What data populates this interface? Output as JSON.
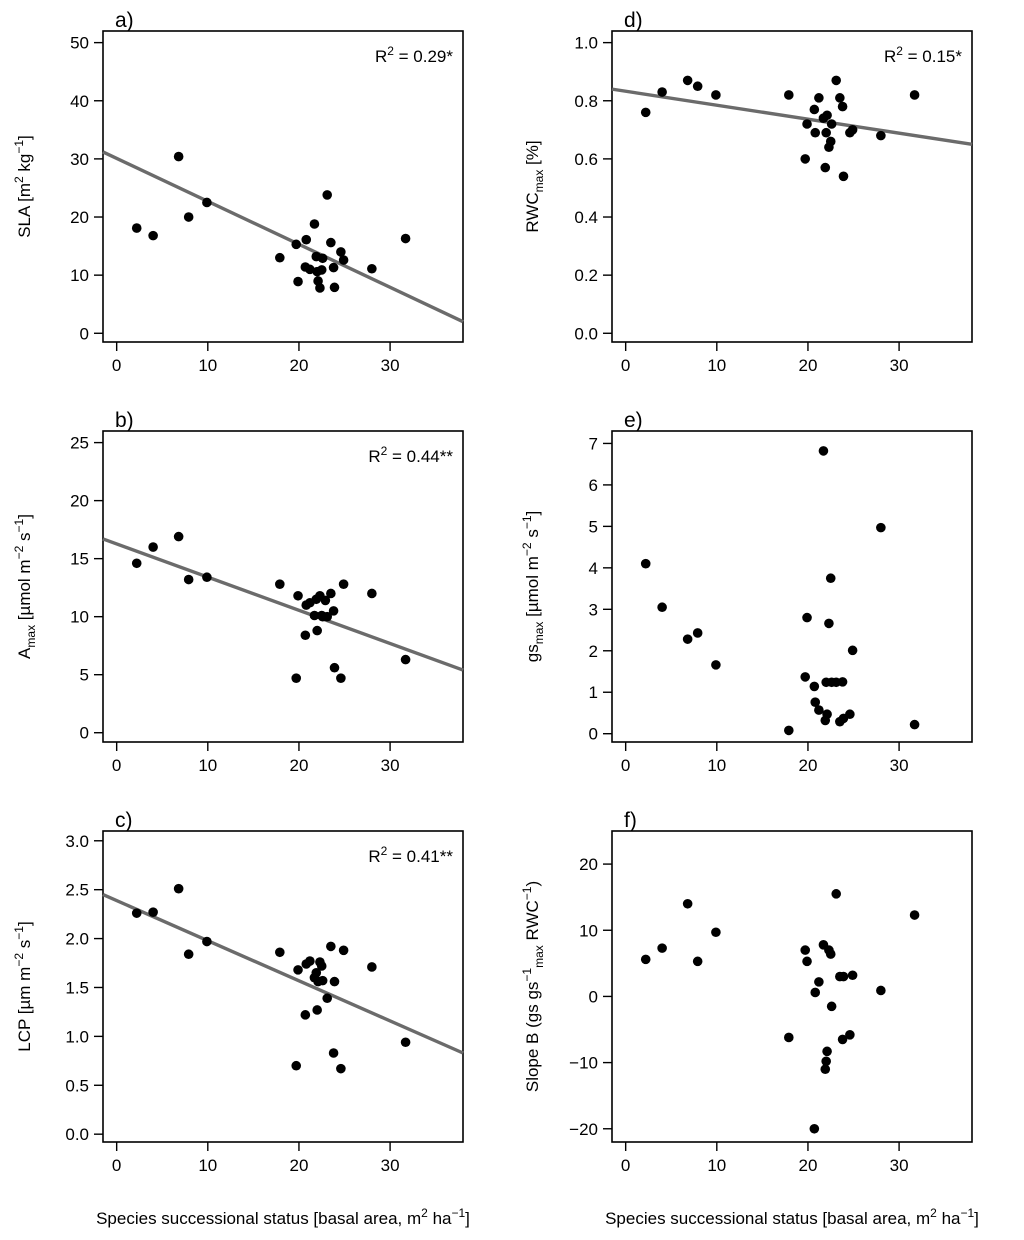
{
  "chart_data": [
    {
      "id": "a",
      "type": "scatter",
      "panel_label": "a)",
      "ylabel": "SLA [m² kg⁻¹]",
      "ylabel_parts": [
        "SLA [m",
        "2",
        " kg",
        "−1",
        "]"
      ],
      "xlim": [
        -1.5,
        38
      ],
      "ylim": [
        -1.5,
        52
      ],
      "xticks": [
        0,
        10,
        20,
        30
      ],
      "yticks": [
        0,
        10,
        20,
        30,
        40,
        50
      ],
      "annotation": "R² = 0.29*",
      "annotation_parts": [
        "R",
        "2",
        " = 0.29*"
      ],
      "fit_line": {
        "x": [
          -1.5,
          38
        ],
        "y": [
          31.2,
          2.0
        ]
      },
      "x": [
        2.2,
        4.0,
        6.8,
        7.9,
        9.9,
        17.9,
        19.7,
        19.9,
        20.7,
        20.8,
        21.2,
        21.7,
        21.9,
        22.0,
        22.1,
        22.3,
        22.5,
        22.6,
        23.1,
        23.5,
        23.8,
        23.9,
        24.6,
        24.9,
        28.0,
        31.7
      ],
      "y": [
        18.1,
        16.8,
        30.4,
        20.0,
        22.5,
        13.0,
        15.3,
        8.9,
        11.4,
        16.1,
        11.0,
        18.8,
        13.2,
        10.6,
        9.0,
        7.8,
        10.9,
        12.9,
        23.8,
        15.6,
        11.3,
        7.9,
        14.0,
        12.6,
        11.1,
        16.3
      ]
    },
    {
      "id": "b",
      "type": "scatter",
      "panel_label": "b)",
      "ylabel": "Aₘₐₓ [µmol m⁻² s⁻¹]",
      "ylabel_parts": [
        "A",
        "max",
        " [µmol m",
        "−2",
        " s",
        "−1",
        "]"
      ],
      "xlim": [
        -1.5,
        38
      ],
      "ylim": [
        -0.8,
        26
      ],
      "xticks": [
        0,
        10,
        20,
        30
      ],
      "yticks": [
        0,
        5,
        10,
        15,
        20,
        25
      ],
      "annotation": "R² = 0.44**",
      "annotation_parts": [
        "R",
        "2",
        " = 0.44**"
      ],
      "fit_line": {
        "x": [
          -1.5,
          38
        ],
        "y": [
          16.7,
          5.4
        ]
      },
      "x": [
        2.2,
        4.0,
        6.8,
        7.9,
        9.9,
        17.9,
        19.7,
        19.9,
        20.7,
        20.8,
        21.2,
        21.7,
        21.9,
        22.0,
        22.3,
        22.5,
        22.6,
        23.1,
        23.5,
        23.8,
        23.9,
        24.6,
        24.9,
        28.0,
        31.7,
        22.9
      ],
      "y": [
        14.6,
        16.0,
        16.9,
        13.2,
        13.4,
        12.8,
        4.7,
        11.8,
        8.4,
        11.0,
        11.2,
        10.1,
        11.5,
        8.8,
        11.8,
        10.1,
        10.0,
        10.0,
        12.0,
        10.5,
        5.6,
        4.7,
        12.8,
        12.0,
        6.3,
        11.4
      ]
    },
    {
      "id": "c",
      "type": "scatter",
      "panel_label": "c)",
      "ylabel": "LCP [µm m⁻² s⁻¹]",
      "ylabel_parts": [
        "LCP [µm m",
        "−2",
        " s",
        "−1",
        "]"
      ],
      "xlim": [
        -1.5,
        38
      ],
      "ylim": [
        -0.08,
        3.1
      ],
      "xticks": [
        0,
        10,
        20,
        30
      ],
      "yticks": [
        0.0,
        0.5,
        1.0,
        1.5,
        2.0,
        2.5,
        3.0
      ],
      "tick_decimals": 1,
      "annotation": "R² = 0.41**",
      "annotation_parts": [
        "R",
        "2",
        " = 0.41**"
      ],
      "fit_line": {
        "x": [
          -1.5,
          38
        ],
        "y": [
          2.45,
          0.83
        ]
      },
      "x": [
        2.2,
        4.0,
        6.8,
        7.9,
        9.9,
        17.9,
        19.7,
        19.9,
        20.7,
        20.8,
        21.2,
        21.7,
        21.9,
        22.0,
        22.1,
        22.3,
        22.5,
        22.6,
        23.1,
        23.5,
        23.8,
        23.9,
        24.6,
        24.9,
        28.0,
        31.7
      ],
      "y": [
        2.26,
        2.27,
        2.51,
        1.84,
        1.97,
        1.86,
        0.7,
        1.68,
        1.22,
        1.74,
        1.77,
        1.6,
        1.65,
        1.27,
        1.56,
        1.76,
        1.72,
        1.57,
        1.39,
        1.92,
        0.83,
        1.56,
        0.67,
        1.88,
        1.71,
        0.94
      ]
    },
    {
      "id": "d",
      "type": "scatter",
      "panel_label": "d)",
      "ylabel": "RWCₘₐₓ [%]",
      "ylabel_parts": [
        "RWC",
        "max",
        " [%]"
      ],
      "xlim": [
        -1.5,
        38
      ],
      "ylim": [
        -0.03,
        1.04
      ],
      "xticks": [
        0,
        10,
        20,
        30
      ],
      "yticks": [
        0.0,
        0.2,
        0.4,
        0.6,
        0.8,
        1.0
      ],
      "tick_decimals": 1,
      "annotation": "R² = 0.15*",
      "annotation_parts": [
        "R",
        "2",
        " = 0.15*"
      ],
      "fit_line": {
        "x": [
          -1.5,
          38
        ],
        "y": [
          0.84,
          0.65
        ]
      },
      "x": [
        2.2,
        4.0,
        6.8,
        7.9,
        9.9,
        17.9,
        19.7,
        19.9,
        20.7,
        20.8,
        21.2,
        21.7,
        21.9,
        22.0,
        22.1,
        22.3,
        22.5,
        22.6,
        23.1,
        23.5,
        23.8,
        23.9,
        24.6,
        24.9,
        28.0,
        31.7
      ],
      "y": [
        0.76,
        0.83,
        0.87,
        0.85,
        0.82,
        0.82,
        0.6,
        0.72,
        0.77,
        0.69,
        0.81,
        0.74,
        0.57,
        0.69,
        0.75,
        0.64,
        0.66,
        0.72,
        0.87,
        0.81,
        0.78,
        0.54,
        0.69,
        0.7,
        0.68,
        0.82
      ]
    },
    {
      "id": "e",
      "type": "scatter",
      "panel_label": "e)",
      "ylabel": "gsₘₐₓ [µmol m⁻² s⁻¹]",
      "ylabel_parts": [
        "gs",
        "max",
        " [µmol m",
        "−2",
        " s",
        "−1",
        "]"
      ],
      "xlim": [
        -1.5,
        38
      ],
      "ylim": [
        -0.2,
        7.3
      ],
      "xticks": [
        0,
        10,
        20,
        30
      ],
      "yticks": [
        0,
        1,
        2,
        3,
        4,
        5,
        6,
        7
      ],
      "annotation": "",
      "x": [
        2.2,
        4.0,
        6.8,
        7.9,
        9.9,
        17.9,
        19.7,
        19.9,
        20.7,
        20.8,
        21.2,
        21.7,
        21.9,
        22.0,
        22.1,
        22.3,
        22.5,
        22.6,
        23.1,
        23.5,
        23.8,
        23.9,
        24.6,
        24.9,
        28.0,
        31.7
      ],
      "y": [
        4.1,
        3.05,
        2.28,
        2.43,
        1.66,
        0.08,
        1.37,
        2.8,
        1.14,
        0.76,
        0.57,
        6.82,
        0.32,
        1.24,
        0.47,
        2.66,
        3.75,
        1.24,
        1.24,
        0.29,
        1.25,
        0.37,
        0.47,
        2.01,
        4.97,
        0.22
      ]
    },
    {
      "id": "f",
      "type": "scatter",
      "panel_label": "f)",
      "ylabel": "Slope B (gs gs⁻¹ₘₐₓ RWC⁻¹)",
      "ylabel_parts": [
        "Slope B (gs gs",
        "−1",
        "max",
        " RWC",
        "−1",
        ")"
      ],
      "xlim": [
        -1.5,
        38
      ],
      "ylim": [
        -22,
        25
      ],
      "xticks": [
        0,
        10,
        20,
        30
      ],
      "yticks": [
        -20,
        -10,
        0,
        10,
        20
      ],
      "annotation": "",
      "x": [
        2.2,
        4.0,
        6.8,
        7.9,
        9.9,
        17.9,
        19.7,
        19.9,
        20.7,
        20.8,
        21.2,
        21.7,
        21.9,
        22.0,
        22.1,
        22.3,
        22.5,
        22.6,
        23.1,
        23.5,
        23.8,
        23.9,
        24.6,
        24.9,
        28.0,
        31.7
      ],
      "y": [
        5.6,
        7.3,
        14.0,
        5.3,
        9.7,
        -6.2,
        7.0,
        5.3,
        -20.0,
        0.6,
        2.2,
        7.8,
        -11.0,
        -9.8,
        -8.3,
        7.0,
        6.4,
        -1.5,
        15.5,
        3.0,
        -6.5,
        3.0,
        -5.8,
        3.2,
        0.9,
        12.3
      ]
    }
  ],
  "x_axis_label": "Species successional status [basal area, m² ha⁻¹]",
  "x_axis_label_parts": [
    "Species successional status [basal area, m",
    "2",
    " ha",
    "−1",
    "]"
  ]
}
